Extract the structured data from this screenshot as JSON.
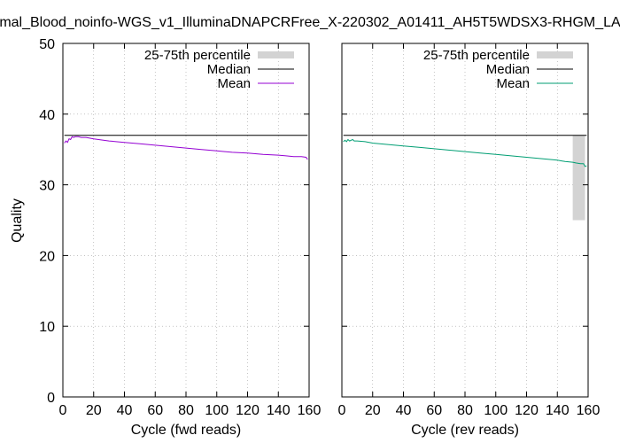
{
  "title": "mal_Blood_noinfo-WGS_v1_IlluminaDNAPCRFree_X-220302_A01411_AH5T5WDSX3-RHGM_LA",
  "y_label": "Quality",
  "colors": {
    "fwd_mean": "#9400d3",
    "rev_mean": "#009e73",
    "median": "#000000",
    "iqr": "#d3d3d3",
    "grid": "#a0a0a0"
  },
  "chart_data": [
    {
      "type": "line",
      "panel": "fwd",
      "xlabel": "Cycle (fwd reads)",
      "ylabel": "Quality",
      "xlim": [
        0,
        160
      ],
      "ylim": [
        0,
        50
      ],
      "x_ticks": [
        0,
        20,
        40,
        60,
        80,
        100,
        120,
        140,
        160
      ],
      "y_ticks": [
        0,
        10,
        20,
        30,
        40,
        50
      ],
      "grid": true,
      "legend": [
        "25-75th percentile",
        "Median",
        "Mean"
      ],
      "legend_position": "top-right",
      "iqr_bands": [],
      "series": [
        {
          "name": "Median",
          "x": [
            1,
            159
          ],
          "values": [
            37,
            37
          ]
        },
        {
          "name": "Mean",
          "x": [
            1,
            2,
            3,
            4,
            5,
            6,
            7,
            8,
            10,
            12,
            15,
            20,
            30,
            40,
            50,
            60,
            70,
            80,
            90,
            100,
            110,
            120,
            130,
            140,
            145,
            150,
            155,
            158,
            159
          ],
          "values": [
            35.9,
            36.2,
            36.0,
            36.5,
            36.4,
            36.8,
            36.7,
            36.8,
            36.8,
            36.7,
            36.7,
            36.5,
            36.2,
            36.0,
            35.8,
            35.6,
            35.4,
            35.2,
            35.0,
            34.8,
            34.6,
            34.5,
            34.3,
            34.2,
            34.1,
            34.0,
            34.0,
            33.9,
            33.6
          ]
        }
      ]
    },
    {
      "type": "line",
      "panel": "rev",
      "xlabel": "Cycle (rev reads)",
      "ylabel": "",
      "xlim": [
        0,
        160
      ],
      "ylim": [
        0,
        50
      ],
      "x_ticks": [
        0,
        20,
        40,
        60,
        80,
        100,
        120,
        140,
        160
      ],
      "y_ticks": [
        0,
        10,
        20,
        30,
        40,
        50
      ],
      "grid": true,
      "legend": [
        "25-75th percentile",
        "Median",
        "Mean"
      ],
      "legend_position": "top-right",
      "iqr_bands": [
        {
          "x_start": 150,
          "x_end": 158,
          "low": 25,
          "high": 37
        }
      ],
      "series": [
        {
          "name": "Median",
          "x": [
            1,
            159
          ],
          "values": [
            37,
            37
          ]
        },
        {
          "name": "Mean",
          "x": [
            1,
            2,
            3,
            4,
            5,
            6,
            7,
            8,
            10,
            15,
            20,
            30,
            40,
            50,
            60,
            70,
            80,
            90,
            100,
            110,
            120,
            130,
            140,
            145,
            150,
            152,
            155,
            157,
            158,
            159
          ],
          "values": [
            36.1,
            36.3,
            36.1,
            36.4,
            36.2,
            36.3,
            36.4,
            36.2,
            36.2,
            36.1,
            35.9,
            35.7,
            35.5,
            35.3,
            35.1,
            34.9,
            34.7,
            34.5,
            34.3,
            34.1,
            33.9,
            33.7,
            33.5,
            33.3,
            33.2,
            33.1,
            33.0,
            33.0,
            32.6,
            32.7
          ]
        }
      ]
    }
  ]
}
